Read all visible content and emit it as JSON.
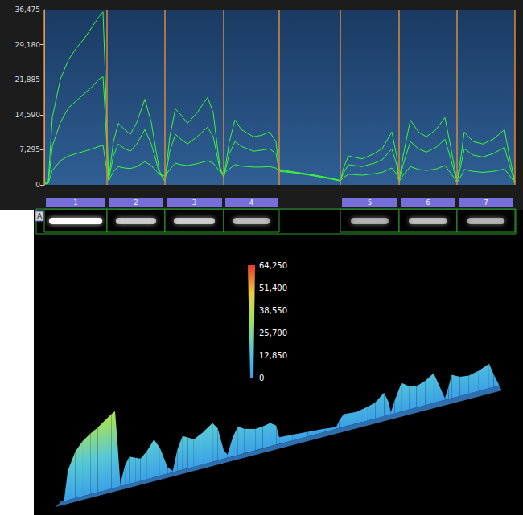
{
  "chart_data": [
    {
      "type": "line",
      "x": [
        0,
        5,
        10,
        20,
        30,
        40,
        50,
        60,
        68,
        73,
        76,
        80,
        86,
        92,
        100,
        107,
        115,
        125,
        133,
        143,
        150,
        156,
        163,
        170,
        178,
        190,
        203,
        210,
        218,
        223,
        230,
        237,
        245,
        260,
        270,
        280,
        288,
        292,
        310,
        330,
        350,
        368,
        372,
        378,
        395,
        410,
        420,
        432,
        438,
        441,
        446,
        455,
        465,
        475,
        487,
        498,
        505,
        513,
        518,
        522,
        533,
        545,
        558,
        572,
        578,
        585
      ],
      "series": [
        {
          "color": "#3df53d",
          "values": [
            200,
            600,
            14000,
            22000,
            26000,
            28500,
            30500,
            33000,
            35000,
            36000,
            22000,
            1200,
            9000,
            12800,
            11500,
            10500,
            13000,
            17800,
            13000,
            3000,
            700,
            10000,
            15800,
            14500,
            12800,
            15000,
            18200,
            15000,
            4000,
            1500,
            9000,
            13500,
            11500,
            10000,
            10300,
            11000,
            9000,
            3200,
            2700,
            2200,
            1600,
            900,
            3500,
            6000,
            5400,
            6500,
            7500,
            11000,
            6000,
            1000,
            6000,
            13500,
            11000,
            10000,
            11500,
            14000,
            8000,
            800,
            6000,
            11000,
            9000,
            8500,
            9500,
            11500,
            6000,
            600
          ]
        },
        {
          "color": "#3df53d",
          "values": [
            200,
            500,
            8000,
            13000,
            16000,
            17500,
            19000,
            20500,
            22000,
            22500,
            14000,
            1000,
            6000,
            8500,
            7500,
            7000,
            8500,
            11500,
            8500,
            2500,
            800,
            7000,
            10500,
            9500,
            8500,
            10000,
            12000,
            10000,
            3500,
            1500,
            6500,
            9000,
            8000,
            7000,
            7200,
            7500,
            6500,
            3000,
            2600,
            2100,
            1500,
            900,
            2500,
            4200,
            3800,
            4500,
            5200,
            7500,
            4200,
            900,
            4200,
            9000,
            7500,
            6800,
            7800,
            9500,
            5500,
            700,
            4200,
            7500,
            6200,
            5800,
            6500,
            7800,
            4200,
            500
          ]
        },
        {
          "color": "#3df53d",
          "values": [
            100,
            300,
            3000,
            5000,
            6000,
            6500,
            7000,
            7500,
            8000,
            8200,
            5000,
            800,
            2800,
            3800,
            3500,
            3400,
            3800,
            4800,
            4000,
            2200,
            1800,
            3200,
            4500,
            4200,
            4000,
            4400,
            5000,
            4500,
            2800,
            2400,
            3300,
            4200,
            3900,
            3700,
            3700,
            3800,
            3500,
            2800,
            2500,
            2000,
            1400,
            800,
            1500,
            2200,
            2000,
            2300,
            2600,
            3500,
            2200,
            700,
            2000,
            3800,
            3200,
            3000,
            3300,
            4000,
            2500,
            500,
            1800,
            3200,
            2800,
            2600,
            2800,
            3300,
            2000,
            400
          ]
        }
      ],
      "xlim": [
        0,
        585
      ],
      "ylim": [
        0,
        36475
      ],
      "yticks": [
        0,
        7295,
        14590,
        21885,
        29180,
        36475
      ],
      "tick_labels": "y",
      "grid": false,
      "lane_bounds": [
        0,
        78,
        150,
        223,
        292,
        368,
        441,
        513,
        585
      ],
      "lane_labels": [
        "1",
        "2",
        "3",
        "4",
        null,
        "5",
        "6",
        "7"
      ],
      "panel_label": "A"
    },
    {
      "type": "surface",
      "x": [
        0,
        5,
        10,
        20,
        30,
        40,
        50,
        60,
        68,
        73,
        76,
        80,
        86,
        92,
        100,
        107,
        115,
        125,
        133,
        143,
        150,
        156,
        163,
        170,
        178,
        190,
        203,
        210,
        218,
        223,
        230,
        237,
        245,
        260,
        270,
        280,
        288,
        292,
        310,
        330,
        350,
        368,
        372,
        378,
        395,
        410,
        420,
        432,
        438,
        441,
        446,
        455,
        465,
        475,
        487,
        498,
        505,
        513,
        518,
        522,
        533,
        545,
        558,
        572,
        578,
        585
      ],
      "values": [
        200,
        600,
        14000,
        22000,
        26000,
        28500,
        30500,
        33000,
        35000,
        36000,
        22000,
        1200,
        9000,
        12800,
        11500,
        10500,
        13000,
        17800,
        13000,
        3000,
        700,
        10000,
        15800,
        14500,
        12800,
        15000,
        18200,
        15000,
        4000,
        1500,
        9000,
        13500,
        11500,
        10000,
        10300,
        11000,
        9000,
        3200,
        2700,
        2200,
        1600,
        900,
        3500,
        6000,
        5400,
        6500,
        7500,
        11000,
        6000,
        1000,
        6000,
        13500,
        11000,
        10000,
        11500,
        14000,
        8000,
        800,
        6000,
        11000,
        9000,
        8500,
        9500,
        11500,
        6000,
        600
      ],
      "xlim": [
        0,
        585
      ],
      "colorbar": {
        "range": [
          0,
          64250
        ],
        "ticks": [
          0,
          12850,
          25700,
          38550,
          51400,
          64250
        ],
        "colors": [
          "#3aa0e8",
          "#55c8d8",
          "#9ee060",
          "#e8d040",
          "#e83a2a"
        ]
      }
    }
  ]
}
